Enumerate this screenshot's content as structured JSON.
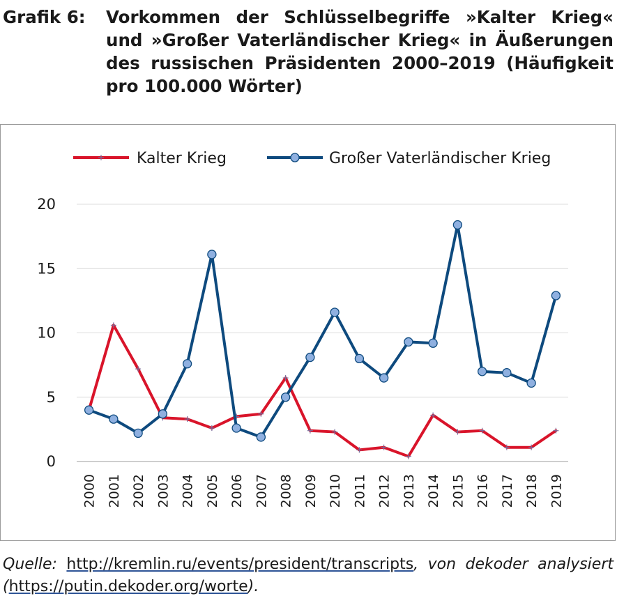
{
  "figure": {
    "label": "Grafik 6:",
    "title": "Vorkommen der Schlüsselbegriffe »Kalter Krieg« und »Großer Vaterländischer Krieg« in Äußerungen des russischen Präsidenten 2000–2019 (Häufigkeit pro 100.000 Wörter)"
  },
  "source": {
    "prefix": "Quelle:",
    "link1": "http://kremlin.ru/events/president/transcripts",
    "middle": ", von dekoder analysiert (",
    "link2": "https://putin.dekoder.org/worte",
    "suffix": ")."
  },
  "chart_data": {
    "type": "line",
    "x": [
      "2000",
      "2001",
      "2002",
      "2003",
      "2004",
      "2005",
      "2006",
      "2007",
      "2008",
      "2009",
      "2010",
      "2011",
      "2012",
      "2013",
      "2014",
      "2015",
      "2016",
      "2017",
      "2018",
      "2019"
    ],
    "ylim": [
      0,
      20
    ],
    "yticks": [
      0,
      5,
      10,
      15,
      20
    ],
    "grid": true,
    "legend_position": "top",
    "series": [
      {
        "name": "Kalter Krieg",
        "color": "#d9142a",
        "marker": "plus",
        "values": [
          4.0,
          10.6,
          7.2,
          3.4,
          3.3,
          2.6,
          3.5,
          3.7,
          6.5,
          2.4,
          2.3,
          0.9,
          1.1,
          0.4,
          3.6,
          2.3,
          2.4,
          1.1,
          1.1,
          2.4
        ]
      },
      {
        "name": "Großer Vaterländischer Krieg",
        "color": "#0e4a7e",
        "marker": "circle",
        "values": [
          4.0,
          3.3,
          2.2,
          3.7,
          7.6,
          16.1,
          2.6,
          1.9,
          5.0,
          8.1,
          11.6,
          8.0,
          6.5,
          9.3,
          9.2,
          18.4,
          7.0,
          6.9,
          6.1,
          12.9
        ]
      }
    ]
  }
}
